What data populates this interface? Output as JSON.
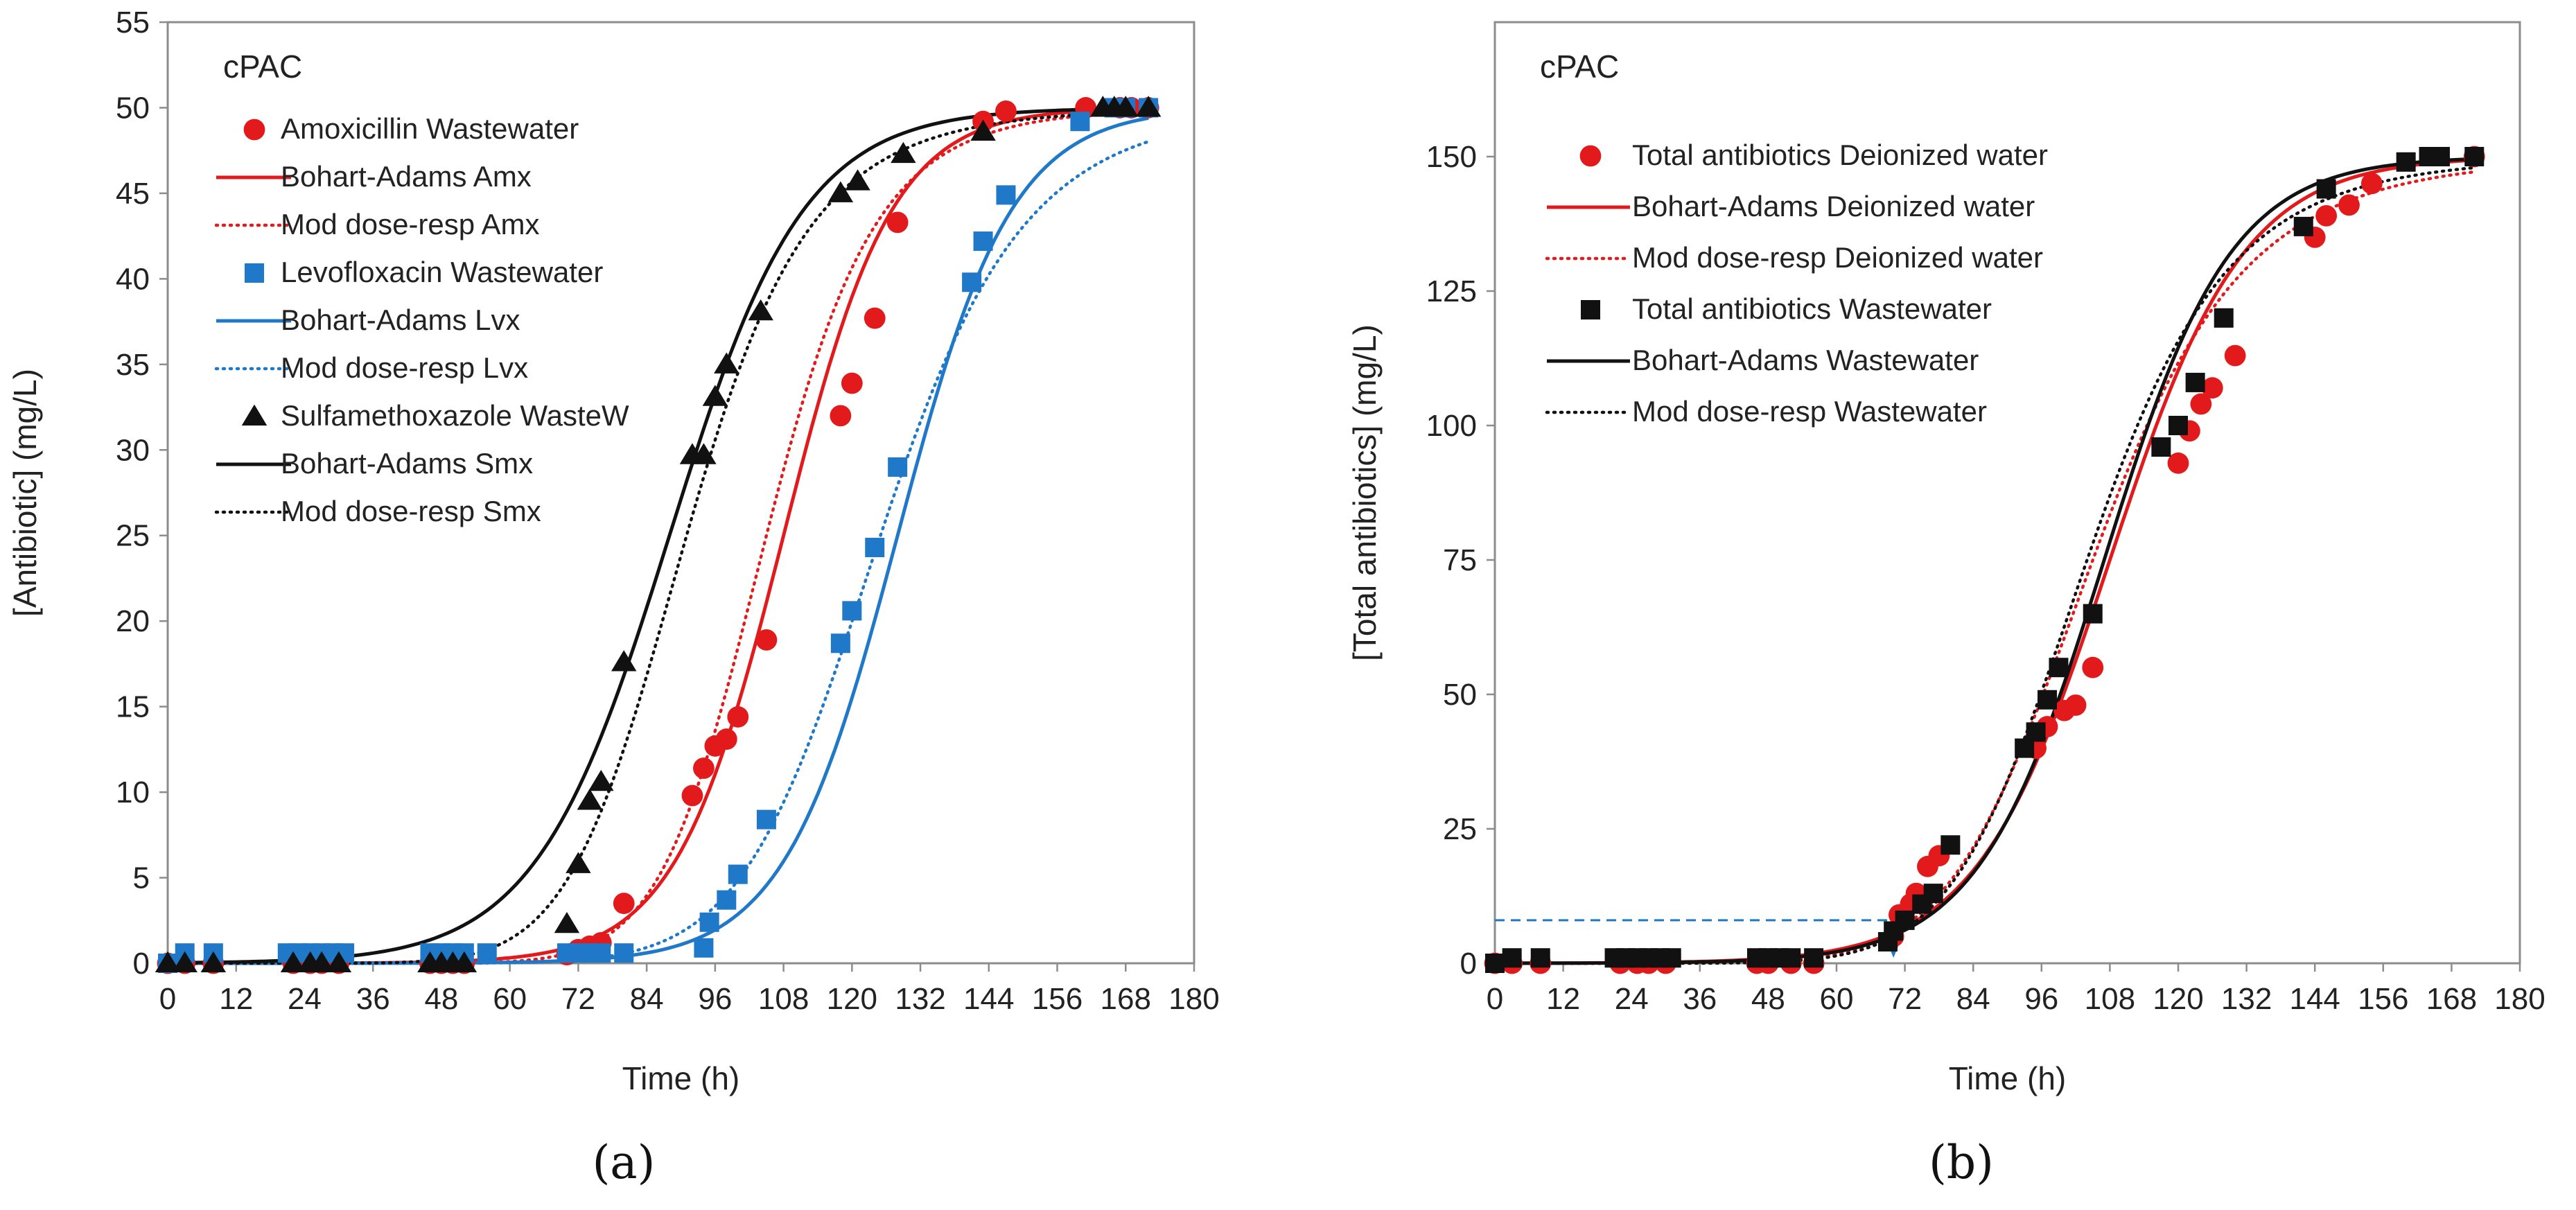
{
  "chart_data": [
    {
      "type": "scatter",
      "panel_label": "(a)",
      "annotation": "cPAC",
      "xlabel": "Time (h)",
      "ylabel": "[Antibiotic] (mg/L)",
      "xlim": [
        0,
        180
      ],
      "ylim": [
        0,
        55
      ],
      "xticks": [
        0,
        12,
        24,
        36,
        48,
        60,
        72,
        84,
        96,
        108,
        120,
        132,
        144,
        156,
        168,
        180
      ],
      "yticks": [
        0,
        5,
        10,
        15,
        20,
        25,
        30,
        35,
        40,
        45,
        50,
        55
      ],
      "legend_position": "top-left",
      "series": [
        {
          "name": "Amoxicillin Wastewater",
          "kind": "points",
          "marker": "circle",
          "color": "#e31a1c",
          "x": [
            0,
            3,
            8,
            22,
            25,
            27,
            30,
            46,
            48,
            50,
            52,
            70,
            72,
            74,
            76,
            80,
            92,
            94,
            96,
            98,
            100,
            105,
            118,
            120,
            124,
            128,
            143,
            147,
            161,
            167,
            169,
            172
          ],
          "y": [
            0,
            0,
            0,
            0,
            0,
            0,
            0,
            0,
            0,
            0,
            0,
            0.5,
            0.8,
            1,
            1.2,
            3.5,
            9.8,
            11.4,
            12.7,
            13.1,
            14.4,
            18.9,
            32.0,
            33.9,
            37.7,
            43.3,
            49.2,
            49.8,
            50,
            50,
            50,
            50
          ]
        },
        {
          "name": "Bohart-Adams Amx",
          "kind": "line",
          "style": "solid",
          "color": "#e31a1c",
          "t50": 108,
          "k": 0.105,
          "max": 50
        },
        {
          "name": "Mod dose-resp Amx",
          "kind": "line",
          "style": "dotted",
          "color": "#e31a1c",
          "t50": 105,
          "a": 11.0,
          "max": 50
        },
        {
          "name": "Levofloxacin Wastewater",
          "kind": "points",
          "marker": "square",
          "color": "#1f78c8",
          "x": [
            0,
            3,
            8,
            21,
            23,
            25,
            27,
            29,
            31,
            46,
            48,
            50,
            52,
            56,
            70,
            72,
            74,
            76,
            80,
            94,
            95,
            98,
            100,
            105,
            118,
            120,
            124,
            128,
            141,
            143,
            147,
            160,
            166,
            168,
            172
          ],
          "y": [
            0,
            0.6,
            0.6,
            0.6,
            0.6,
            0.6,
            0.6,
            0.6,
            0.6,
            0.6,
            0.6,
            0.6,
            0.6,
            0.6,
            0.6,
            0.6,
            0.6,
            0.6,
            0.6,
            0.9,
            2.4,
            3.7,
            5.2,
            8.4,
            18.7,
            20.6,
            24.3,
            29.0,
            39.8,
            42.2,
            44.9,
            49.2,
            50,
            50,
            50
          ]
        },
        {
          "name": "Bohart-Adams Lvx",
          "kind": "line",
          "style": "solid",
          "color": "#1f78c8",
          "t50": 128,
          "k": 0.1,
          "max": 50
        },
        {
          "name": "Mod dose-resp Lvx",
          "kind": "line",
          "style": "dotted",
          "color": "#1f78c8",
          "t50": 125,
          "a": 10.0,
          "max": 50
        },
        {
          "name": "Sulfamethoxazole WasteW",
          "kind": "points",
          "marker": "triangle",
          "color": "#111111",
          "x": [
            0,
            3,
            8,
            22,
            25,
            27,
            30,
            46,
            48,
            50,
            52,
            70,
            72,
            74,
            76,
            80,
            92,
            94,
            96,
            98,
            104,
            118,
            121,
            129,
            143,
            164,
            166,
            168,
            172
          ],
          "y": [
            0,
            0,
            0,
            0,
            0,
            0,
            0,
            0,
            0,
            0,
            0,
            2.3,
            5.8,
            9.5,
            10.6,
            17.6,
            29.7,
            29.7,
            33.1,
            35.0,
            38.1,
            45.0,
            45.7,
            47.3,
            48.6,
            50,
            50,
            50,
            50
          ]
        },
        {
          "name": "Bohart-Adams Smx",
          "kind": "line",
          "style": "solid",
          "color": "#111111",
          "t50": 88,
          "k": 0.085,
          "max": 50
        },
        {
          "name": "Mod dose-resp Smx",
          "kind": "line",
          "style": "dotted",
          "color": "#111111",
          "t50": 91,
          "a": 8.5,
          "max": 50
        }
      ]
    },
    {
      "type": "scatter",
      "panel_label": "(b)",
      "annotation": "cPAC",
      "xlabel": "Time (h)",
      "ylabel": "[Total antibiotics] (mg/L)",
      "xlim": [
        0,
        180
      ],
      "ylim": [
        0,
        175
      ],
      "xticks": [
        0,
        12,
        24,
        36,
        48,
        60,
        72,
        84,
        96,
        108,
        120,
        132,
        144,
        156,
        168,
        180
      ],
      "yticks": [
        0,
        25,
        50,
        75,
        100,
        125,
        150
      ],
      "legend_position": "top-left",
      "reference_line": {
        "y": 8,
        "x_end": 70
      },
      "series": [
        {
          "name": "Total antibiotics Deionized water",
          "kind": "points",
          "marker": "circle",
          "color": "#e31a1c",
          "x": [
            0,
            3,
            8,
            22,
            25,
            27,
            30,
            46,
            48,
            52,
            56,
            70,
            71,
            73,
            74,
            76,
            78,
            95,
            97,
            100,
            102,
            105,
            120,
            122,
            124,
            126,
            130,
            144,
            146,
            150,
            154,
            172
          ],
          "y": [
            0,
            0,
            0,
            0,
            0,
            0,
            0,
            0,
            0,
            0,
            0,
            5,
            9,
            11,
            13,
            18,
            20,
            40,
            44,
            47,
            48,
            55,
            93,
            99,
            104,
            107,
            113,
            135,
            139,
            141,
            145,
            150
          ]
        },
        {
          "name": "Bohart-Adams Deionized water",
          "kind": "line",
          "style": "solid",
          "color": "#e31a1c",
          "t50": 108,
          "k": 0.085,
          "max": 150
        },
        {
          "name": "Mod dose-resp Deionized water",
          "kind": "line",
          "style": "dotted",
          "color": "#e31a1c",
          "t50": 105,
          "a": 8.0,
          "max": 150
        },
        {
          "name": "Total antibiotics Wastewater",
          "kind": "points",
          "marker": "square",
          "color": "#111111",
          "x": [
            0,
            3,
            8,
            21,
            23,
            25,
            27,
            29,
            31,
            46,
            48,
            50,
            52,
            56,
            69,
            70,
            72,
            75,
            77,
            80,
            93,
            95,
            97,
            99,
            105,
            117,
            120,
            123,
            128,
            142,
            146,
            160,
            164,
            166,
            172
          ],
          "y": [
            0,
            1,
            1,
            1,
            1,
            1,
            1,
            1,
            1,
            1,
            1,
            1,
            1,
            1,
            4,
            6,
            8,
            11,
            13,
            22,
            40,
            43,
            49,
            55,
            65,
            96,
            100,
            108,
            120,
            137,
            144,
            149,
            150,
            150,
            150
          ]
        },
        {
          "name": "Bohart-Adams Wastewater",
          "kind": "line",
          "style": "solid",
          "color": "#111111",
          "t50": 107,
          "k": 0.09,
          "max": 150
        },
        {
          "name": "Mod dose-resp Wastewater",
          "kind": "line",
          "style": "dotted",
          "color": "#111111",
          "t50": 104,
          "a": 8.5,
          "max": 150
        }
      ]
    }
  ]
}
